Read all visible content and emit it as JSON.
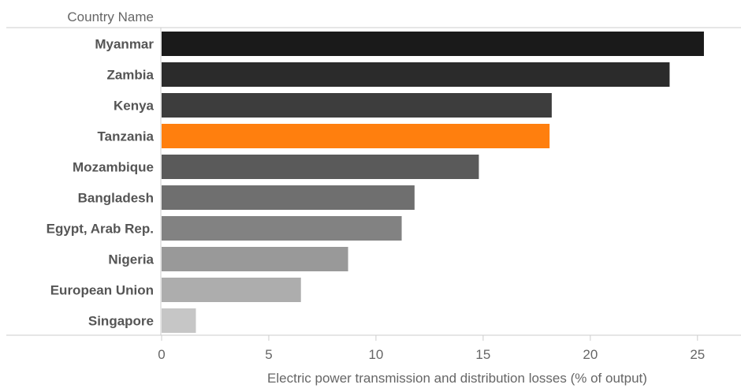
{
  "chart_data": {
    "type": "bar",
    "orientation": "horizontal",
    "row_header": "Country Name",
    "xlabel": "Electric power transmission and distribution losses (% of output)",
    "xlim": [
      0,
      26
    ],
    "xticks": [
      0,
      5,
      10,
      15,
      20,
      25
    ],
    "grid": false,
    "categories": [
      "Myanmar",
      "Zambia",
      "Kenya",
      "Tanzania",
      "Mozambique",
      "Bangladesh",
      "Egypt, Arab Rep.",
      "Nigeria",
      "European Union",
      "Singapore"
    ],
    "values": [
      25.3,
      23.7,
      18.2,
      18.1,
      14.8,
      11.8,
      11.2,
      8.7,
      6.5,
      1.6
    ],
    "highlight": "Tanzania",
    "highlight_color": "#ff7f0e",
    "bar_colors": [
      "#1a1a1a",
      "#2b2b2b",
      "#3d3d3d",
      "#ff7f0e",
      "#5a5a5a",
      "#6f6f6f",
      "#828282",
      "#999999",
      "#adadad",
      "#c6c6c6"
    ]
  }
}
